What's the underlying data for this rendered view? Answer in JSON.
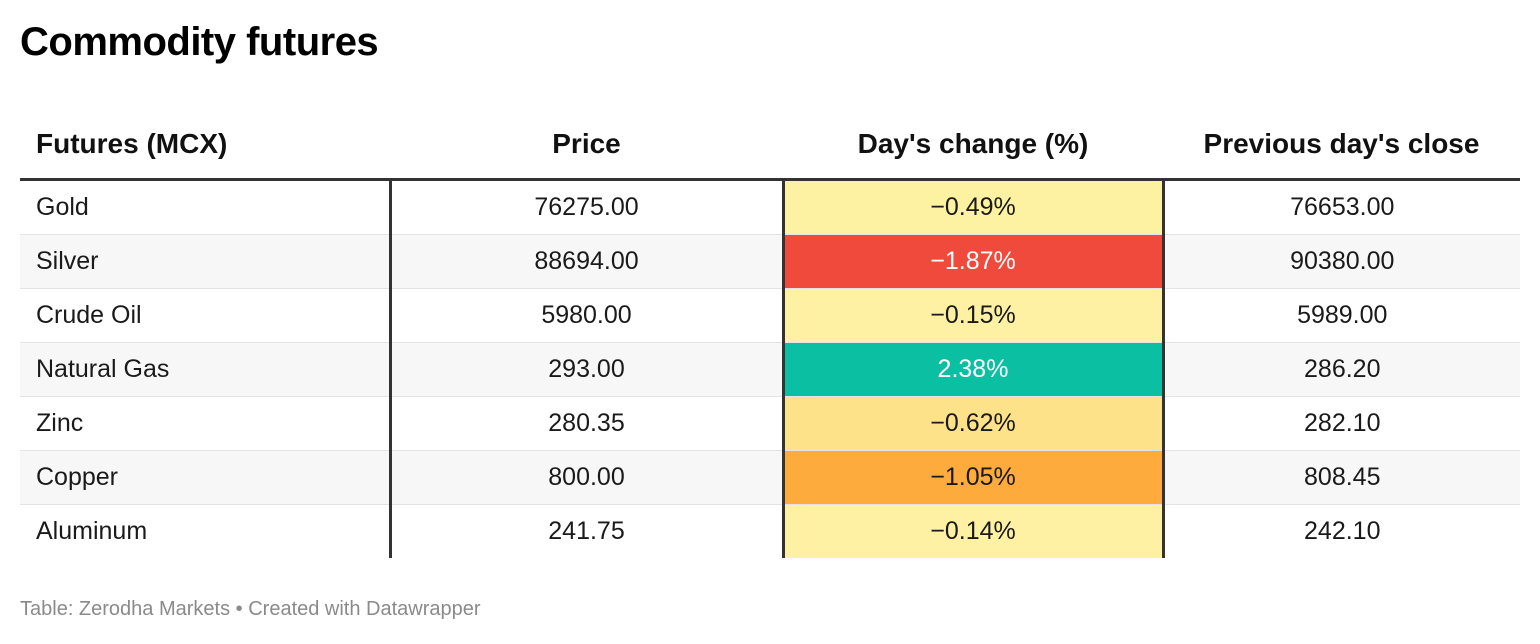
{
  "title": "Commodity futures",
  "footer": "Table: Zerodha Markets • Created with Datawrapper",
  "chart_data": {
    "type": "table",
    "title": "Commodity futures",
    "columns": [
      "Futures (MCX)",
      "Price",
      "Day's change (%)",
      "Previous day's close"
    ],
    "rows": [
      {
        "name": "Gold",
        "price": "76275.00",
        "change": "−0.49%",
        "change_value": -0.49,
        "change_color": "#fdf2a1",
        "change_text_color": "#1a1a1a",
        "prev_close": "76653.00"
      },
      {
        "name": "Silver",
        "price": "88694.00",
        "change": "−1.87%",
        "change_value": -1.87,
        "change_color": "#ef4a3c",
        "change_text_color": "#ffffff",
        "prev_close": "90380.00"
      },
      {
        "name": "Crude Oil",
        "price": "5980.00",
        "change": "−0.15%",
        "change_value": -0.15,
        "change_color": "#fef1a4",
        "change_text_color": "#1a1a1a",
        "prev_close": "5989.00"
      },
      {
        "name": "Natural Gas",
        "price": "293.00",
        "change": "2.38%",
        "change_value": 2.38,
        "change_color": "#0bbfa3",
        "change_text_color": "#ffffff",
        "prev_close": "286.20"
      },
      {
        "name": "Zinc",
        "price": "280.35",
        "change": "−0.62%",
        "change_value": -0.62,
        "change_color": "#fde28a",
        "change_text_color": "#1a1a1a",
        "prev_close": "282.10"
      },
      {
        "name": "Copper",
        "price": "800.00",
        "change": "−1.05%",
        "change_value": -1.05,
        "change_color": "#fdab3c",
        "change_text_color": "#1a1a1a",
        "prev_close": "808.45"
      },
      {
        "name": "Aluminum",
        "price": "241.75",
        "change": "−0.14%",
        "change_value": -0.14,
        "change_color": "#fef1a4",
        "change_text_color": "#1a1a1a",
        "prev_close": "242.10"
      }
    ]
  }
}
